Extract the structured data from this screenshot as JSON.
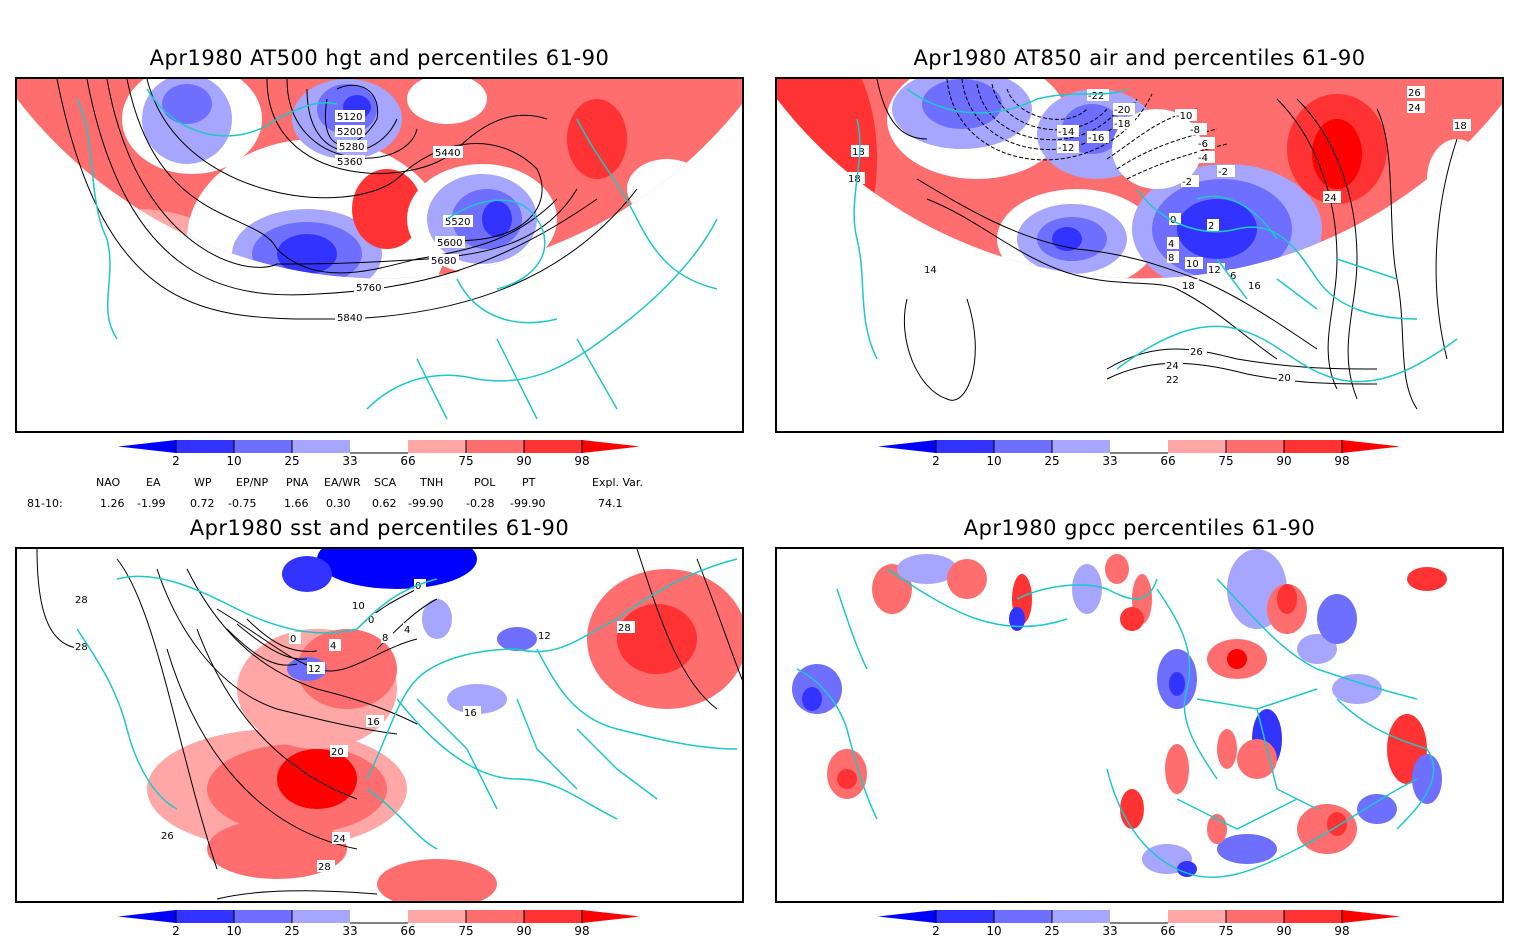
{
  "colorbar": {
    "ticks": [
      "2",
      "10",
      "25",
      "33",
      "66",
      "75",
      "90",
      "98"
    ],
    "colors": {
      "below_2": "#0000ff",
      "p2_10": "#3333ff",
      "p10_25": "#6e6eff",
      "p25_33": "#a6a6ff",
      "p33_66": "#ffffff",
      "p66_75": "#ffa6a6",
      "p75_90": "#ff6e6e",
      "p90_98": "#ff3333",
      "above_98": "#ff0000"
    }
  },
  "border_color": "#1ec8c8",
  "panels": {
    "hgt500": {
      "title": "Apr1980 AT500 hgt and percentiles 61-90",
      "contour_labels": [
        "5120",
        "5200",
        "5280",
        "5360",
        "5440",
        "5520",
        "5600",
        "5680",
        "5760",
        "5840"
      ]
    },
    "air850": {
      "title": "Apr1980 AT850 air and percentiles 61-90",
      "contour_labels": [
        "-22",
        "-20",
        "-18",
        "-16",
        "-14",
        "-12",
        "-10",
        "-8",
        "-6",
        "-4",
        "-2",
        "-2",
        "0",
        "2",
        "4",
        "6",
        "8",
        "10",
        "12",
        "14",
        "16",
        "18",
        "18",
        "18",
        "18",
        "20",
        "22",
        "24",
        "24",
        "24",
        "26",
        "26"
      ]
    },
    "sst": {
      "title": "Apr1980 sst and percentiles 61-90",
      "contour_labels": [
        "28",
        "28",
        "0",
        "0",
        "0",
        "4",
        "4",
        "8",
        "10",
        "12",
        "12",
        "16",
        "16",
        "20",
        "24",
        "26",
        "28",
        "28"
      ]
    },
    "gpcc": {
      "title": "Apr1980 gpcc percentiles 61-90"
    }
  },
  "indices": {
    "headers": [
      "NAO",
      "EA",
      "WP",
      "EP/NP",
      "PNA",
      "EA/WR",
      "SCA",
      "TNH",
      "POL",
      "PT",
      "Expl. Var."
    ],
    "row_label": "81-10:",
    "values": [
      "1.26",
      "-1.99",
      "0.72",
      "-0.75",
      "1.66",
      "0.30",
      "0.62",
      "-99.90",
      "-0.28",
      "-99.90",
      "74.1"
    ]
  }
}
